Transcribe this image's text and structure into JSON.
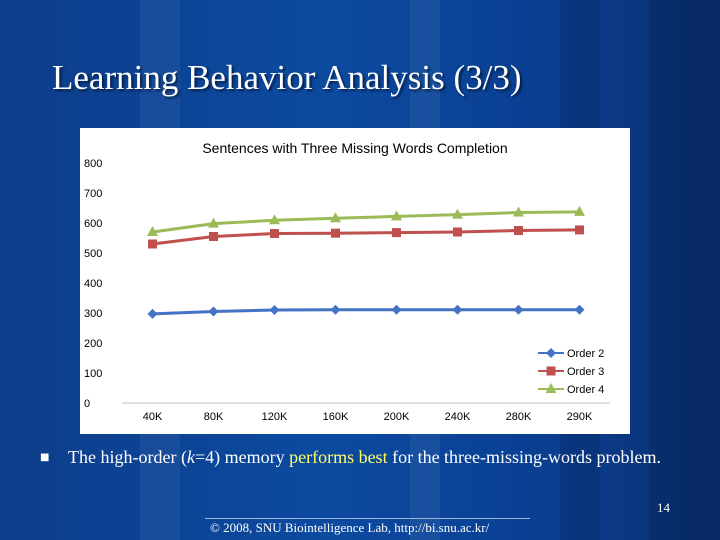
{
  "slide": {
    "title": "Learning Behavior Analysis (3/3)",
    "bullet": {
      "pre": "The high-order (",
      "k": "k",
      "mid": "=4) memory ",
      "highlight": "performs best",
      "post": " for the three-missing-words problem."
    },
    "page_number": "14",
    "footer": "© 2008, SNU Biointelligence Lab, http://bi.snu.ac.kr/"
  },
  "chart_data": {
    "type": "line",
    "title": "Sentences with Three Missing Words Completion",
    "categories": [
      "40K",
      "80K",
      "120K",
      "160K",
      "200K",
      "240K",
      "280K",
      "290K"
    ],
    "yticks": [
      "0",
      "100",
      "200",
      "300",
      "400",
      "500",
      "600",
      "700",
      "800"
    ],
    "ylim": [
      0,
      800
    ],
    "series": [
      {
        "name": "Order 2",
        "values": [
          297,
          305,
          310,
          311,
          311,
          311,
          311,
          311
        ],
        "color": "#4472c4",
        "marker": "diamond"
      },
      {
        "name": "Order 3",
        "values": [
          530,
          555,
          565,
          566,
          568,
          570,
          575,
          577
        ],
        "color": "#c0504d",
        "marker": "square"
      },
      {
        "name": "Order 4",
        "values": [
          570,
          598,
          609,
          616,
          622,
          628,
          635,
          637
        ],
        "color": "#9bbb59",
        "marker": "triangle"
      }
    ],
    "legend_position": "right",
    "grid": false
  }
}
